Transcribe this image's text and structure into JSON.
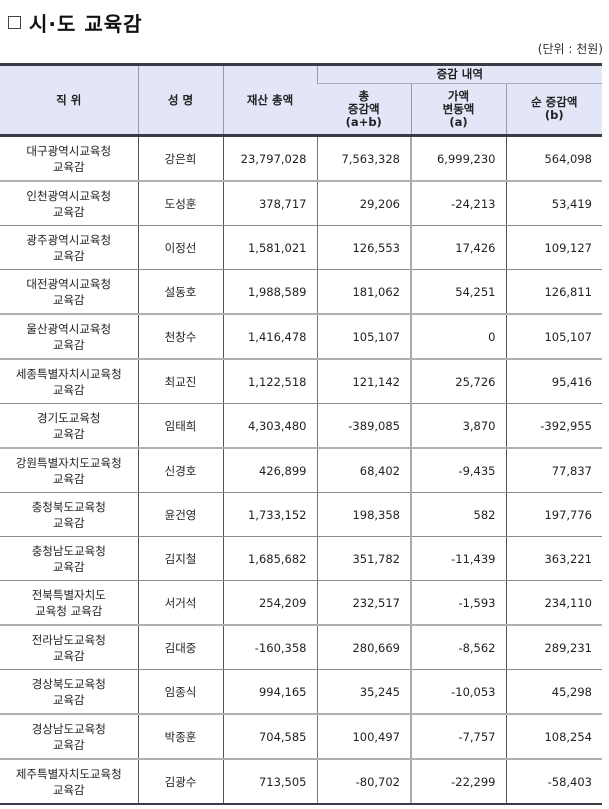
{
  "title": "시·도 교육감",
  "unit": "(단위 : 천원)",
  "table": {
    "headers": {
      "position": "직 위",
      "name": "성 명",
      "total_assets": "재산 총액",
      "group": "증감 내역",
      "total_change_l1": "총",
      "total_change_l2": "증감액",
      "total_change_l3": "(a+b)",
      "value_change_l1": "가액",
      "value_change_l2": "변동액",
      "value_change_l3": "(a)",
      "net_change_l1": "순 증감액",
      "net_change_l2": "(b)"
    },
    "rows": [
      {
        "pos1": "대구광역시교육청",
        "pos2": "교육감",
        "name": "강은희",
        "total": "23,797,028",
        "change": "7,563,328",
        "value": "6,999,230",
        "net": "564,098"
      },
      {
        "pos1": "인천광역시교육청",
        "pos2": "교육감",
        "name": "도성훈",
        "total": "378,717",
        "change": "29,206",
        "value": "-24,213",
        "net": "53,419"
      },
      {
        "pos1": "광주광역시교육청",
        "pos2": "교육감",
        "name": "이정선",
        "total": "1,581,021",
        "change": "126,553",
        "value": "17,426",
        "net": "109,127"
      },
      {
        "pos1": "대전광역시교육청",
        "pos2": "교육감",
        "name": "설동호",
        "total": "1,988,589",
        "change": "181,062",
        "value": "54,251",
        "net": "126,811"
      },
      {
        "pos1": "울산광역시교육청",
        "pos2": "교육감",
        "name": "천창수",
        "total": "1,416,478",
        "change": "105,107",
        "value": "0",
        "net": "105,107"
      },
      {
        "pos1": "세종특별자치시교육청",
        "pos2": "교육감",
        "name": "최교진",
        "total": "1,122,518",
        "change": "121,142",
        "value": "25,726",
        "net": "95,416"
      },
      {
        "pos1": "경기도교육청",
        "pos2": "교육감",
        "name": "임태희",
        "total": "4,303,480",
        "change": "-389,085",
        "value": "3,870",
        "net": "-392,955"
      },
      {
        "pos1": "강원특별자치도교육청",
        "pos2": "교육감",
        "name": "신경호",
        "total": "426,899",
        "change": "68,402",
        "value": "-9,435",
        "net": "77,837"
      },
      {
        "pos1": "충청북도교육청",
        "pos2": "교육감",
        "name": "윤건영",
        "total": "1,733,152",
        "change": "198,358",
        "value": "582",
        "net": "197,776"
      },
      {
        "pos1": "충청남도교육청",
        "pos2": "교육감",
        "name": "김지철",
        "total": "1,685,682",
        "change": "351,782",
        "value": "-11,439",
        "net": "363,221"
      },
      {
        "pos1": "전북특별자치도",
        "pos2": "교육청 교육감",
        "name": "서거석",
        "total": "254,209",
        "change": "232,517",
        "value": "-1,593",
        "net": "234,110"
      },
      {
        "pos1": "전라남도교육청",
        "pos2": "교육감",
        "name": "김대중",
        "total": "-160,358",
        "change": "280,669",
        "value": "-8,562",
        "net": "289,231"
      },
      {
        "pos1": "경상북도교육청",
        "pos2": "교육감",
        "name": "임종식",
        "total": "994,165",
        "change": "35,245",
        "value": "-10,053",
        "net": "45,298"
      },
      {
        "pos1": "경상남도교육청",
        "pos2": "교육감",
        "name": "박종훈",
        "total": "704,585",
        "change": "100,497",
        "value": "-7,757",
        "net": "108,254"
      },
      {
        "pos1": "제주특별자치도교육청",
        "pos2": "교육감",
        "name": "김광수",
        "total": "713,505",
        "change": "-80,702",
        "value": "-22,299",
        "net": "-58,403"
      }
    ]
  }
}
